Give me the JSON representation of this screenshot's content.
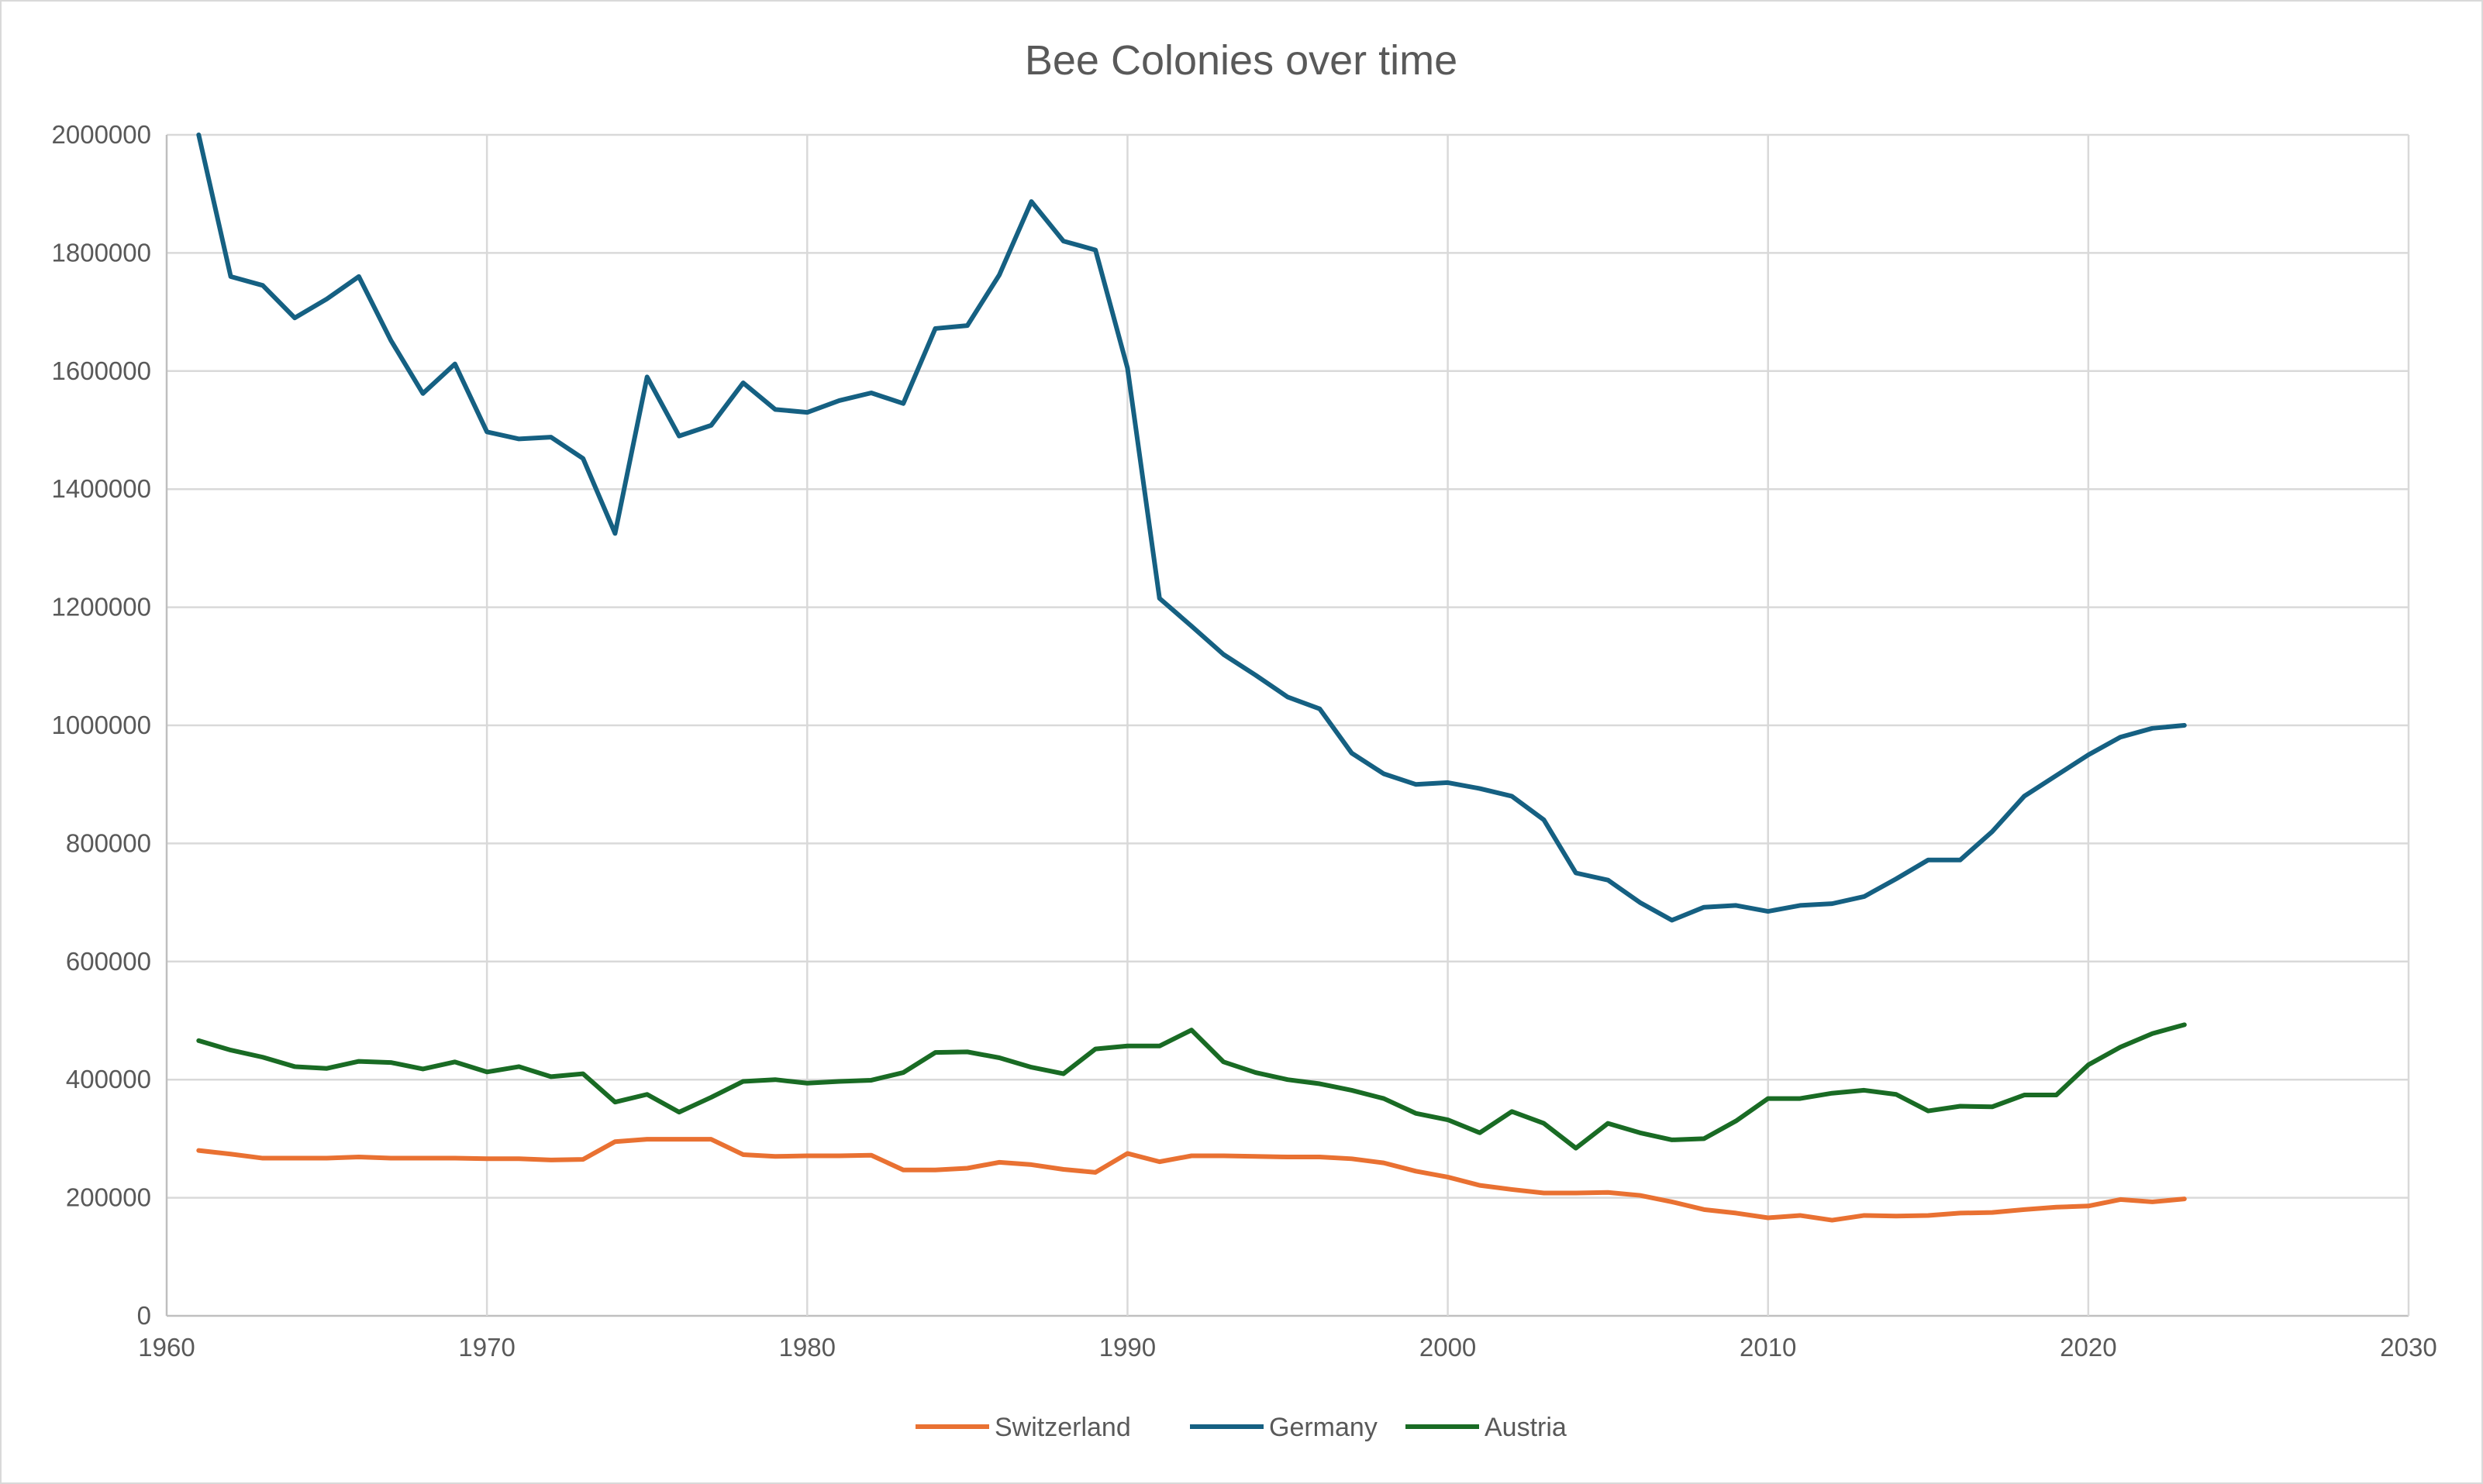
{
  "chart_data": {
    "type": "line",
    "title": "Bee Colonies over time",
    "xlabel": "",
    "ylabel": "",
    "xlim": [
      1960,
      2030
    ],
    "ylim": [
      0,
      2000000
    ],
    "x_ticks": [
      "1960",
      "1970",
      "1980",
      "1990",
      "2000",
      "2010",
      "2020",
      "2030"
    ],
    "y_ticks": [
      "0",
      "200000",
      "400000",
      "600000",
      "800000",
      "1000000",
      "1200000",
      "1400000",
      "1600000",
      "1800000",
      "2000000"
    ],
    "grid": true,
    "legend_position": "bottom",
    "x": [
      1961,
      1962,
      1963,
      1964,
      1965,
      1966,
      1967,
      1968,
      1969,
      1970,
      1971,
      1972,
      1973,
      1974,
      1975,
      1976,
      1977,
      1978,
      1979,
      1980,
      1981,
      1982,
      1983,
      1984,
      1985,
      1986,
      1987,
      1988,
      1989,
      1990,
      1991,
      1992,
      1993,
      1994,
      1995,
      1996,
      1997,
      1998,
      1999,
      2000,
      2001,
      2002,
      2003,
      2004,
      2005,
      2006,
      2007,
      2008,
      2009,
      2010,
      2011,
      2012,
      2013,
      2014,
      2015,
      2016,
      2017,
      2018,
      2019,
      2020,
      2021,
      2022,
      2023
    ],
    "series": [
      {
        "name": "Switzerland",
        "color": "#E97132",
        "values": [
          280000,
          274000,
          267000,
          267000,
          267000,
          269000,
          267000,
          267000,
          267000,
          266000,
          266000,
          264000,
          265000,
          295000,
          299000,
          299000,
          299000,
          273000,
          270000,
          271000,
          271000,
          272000,
          247000,
          247000,
          250000,
          260000,
          256000,
          248000,
          243000,
          275000,
          261000,
          271000,
          271000,
          270000,
          269000,
          269000,
          266000,
          259000,
          245000,
          235000,
          221000,
          214000,
          208000,
          208000,
          209000,
          204000,
          193000,
          180000,
          174000,
          166000,
          170000,
          162000,
          170000,
          169000,
          170000,
          174000,
          175000,
          180000,
          184000,
          186000,
          197000,
          193000,
          198000
        ]
      },
      {
        "name": "Germany",
        "color": "#156082",
        "values": [
          2000000,
          1760000,
          1745000,
          1690000,
          1722000,
          1760000,
          1652000,
          1562000,
          1612000,
          1497000,
          1485000,
          1488000,
          1452000,
          1325000,
          1590000,
          1490000,
          1508000,
          1580000,
          1535000,
          1530000,
          1550000,
          1563000,
          1545000,
          1672000,
          1677000,
          1763000,
          1887000,
          1820000,
          1805000,
          1605000,
          1215000,
          1168000,
          1120000,
          1085000,
          1048000,
          1028000,
          953000,
          918000,
          900000,
          903000,
          893000,
          880000,
          840000,
          750000,
          738000,
          700000,
          670000,
          692000,
          695000,
          685000,
          695000,
          698000,
          710000,
          740000,
          772000,
          772000,
          820000,
          880000,
          915000,
          950000,
          980000,
          995000,
          1000000
        ]
      },
      {
        "name": "Austria",
        "color": "#196B24",
        "values": [
          466000,
          450000,
          438000,
          422000,
          419000,
          431000,
          429000,
          418000,
          430000,
          413000,
          422000,
          405000,
          410000,
          362000,
          375000,
          345000,
          370000,
          397000,
          400000,
          394000,
          397000,
          399000,
          412000,
          446000,
          447000,
          437000,
          421000,
          410000,
          452000,
          457000,
          457000,
          484000,
          430000,
          412000,
          400000,
          393000,
          382000,
          368000,
          343000,
          332000,
          310000,
          346000,
          326000,
          284000,
          326000,
          310000,
          298000,
          300000,
          330000,
          368000,
          368000,
          377000,
          382000,
          375000,
          347000,
          355000,
          354000,
          374000,
          374000,
          425000,
          455000,
          478000,
          493000
        ]
      }
    ]
  }
}
